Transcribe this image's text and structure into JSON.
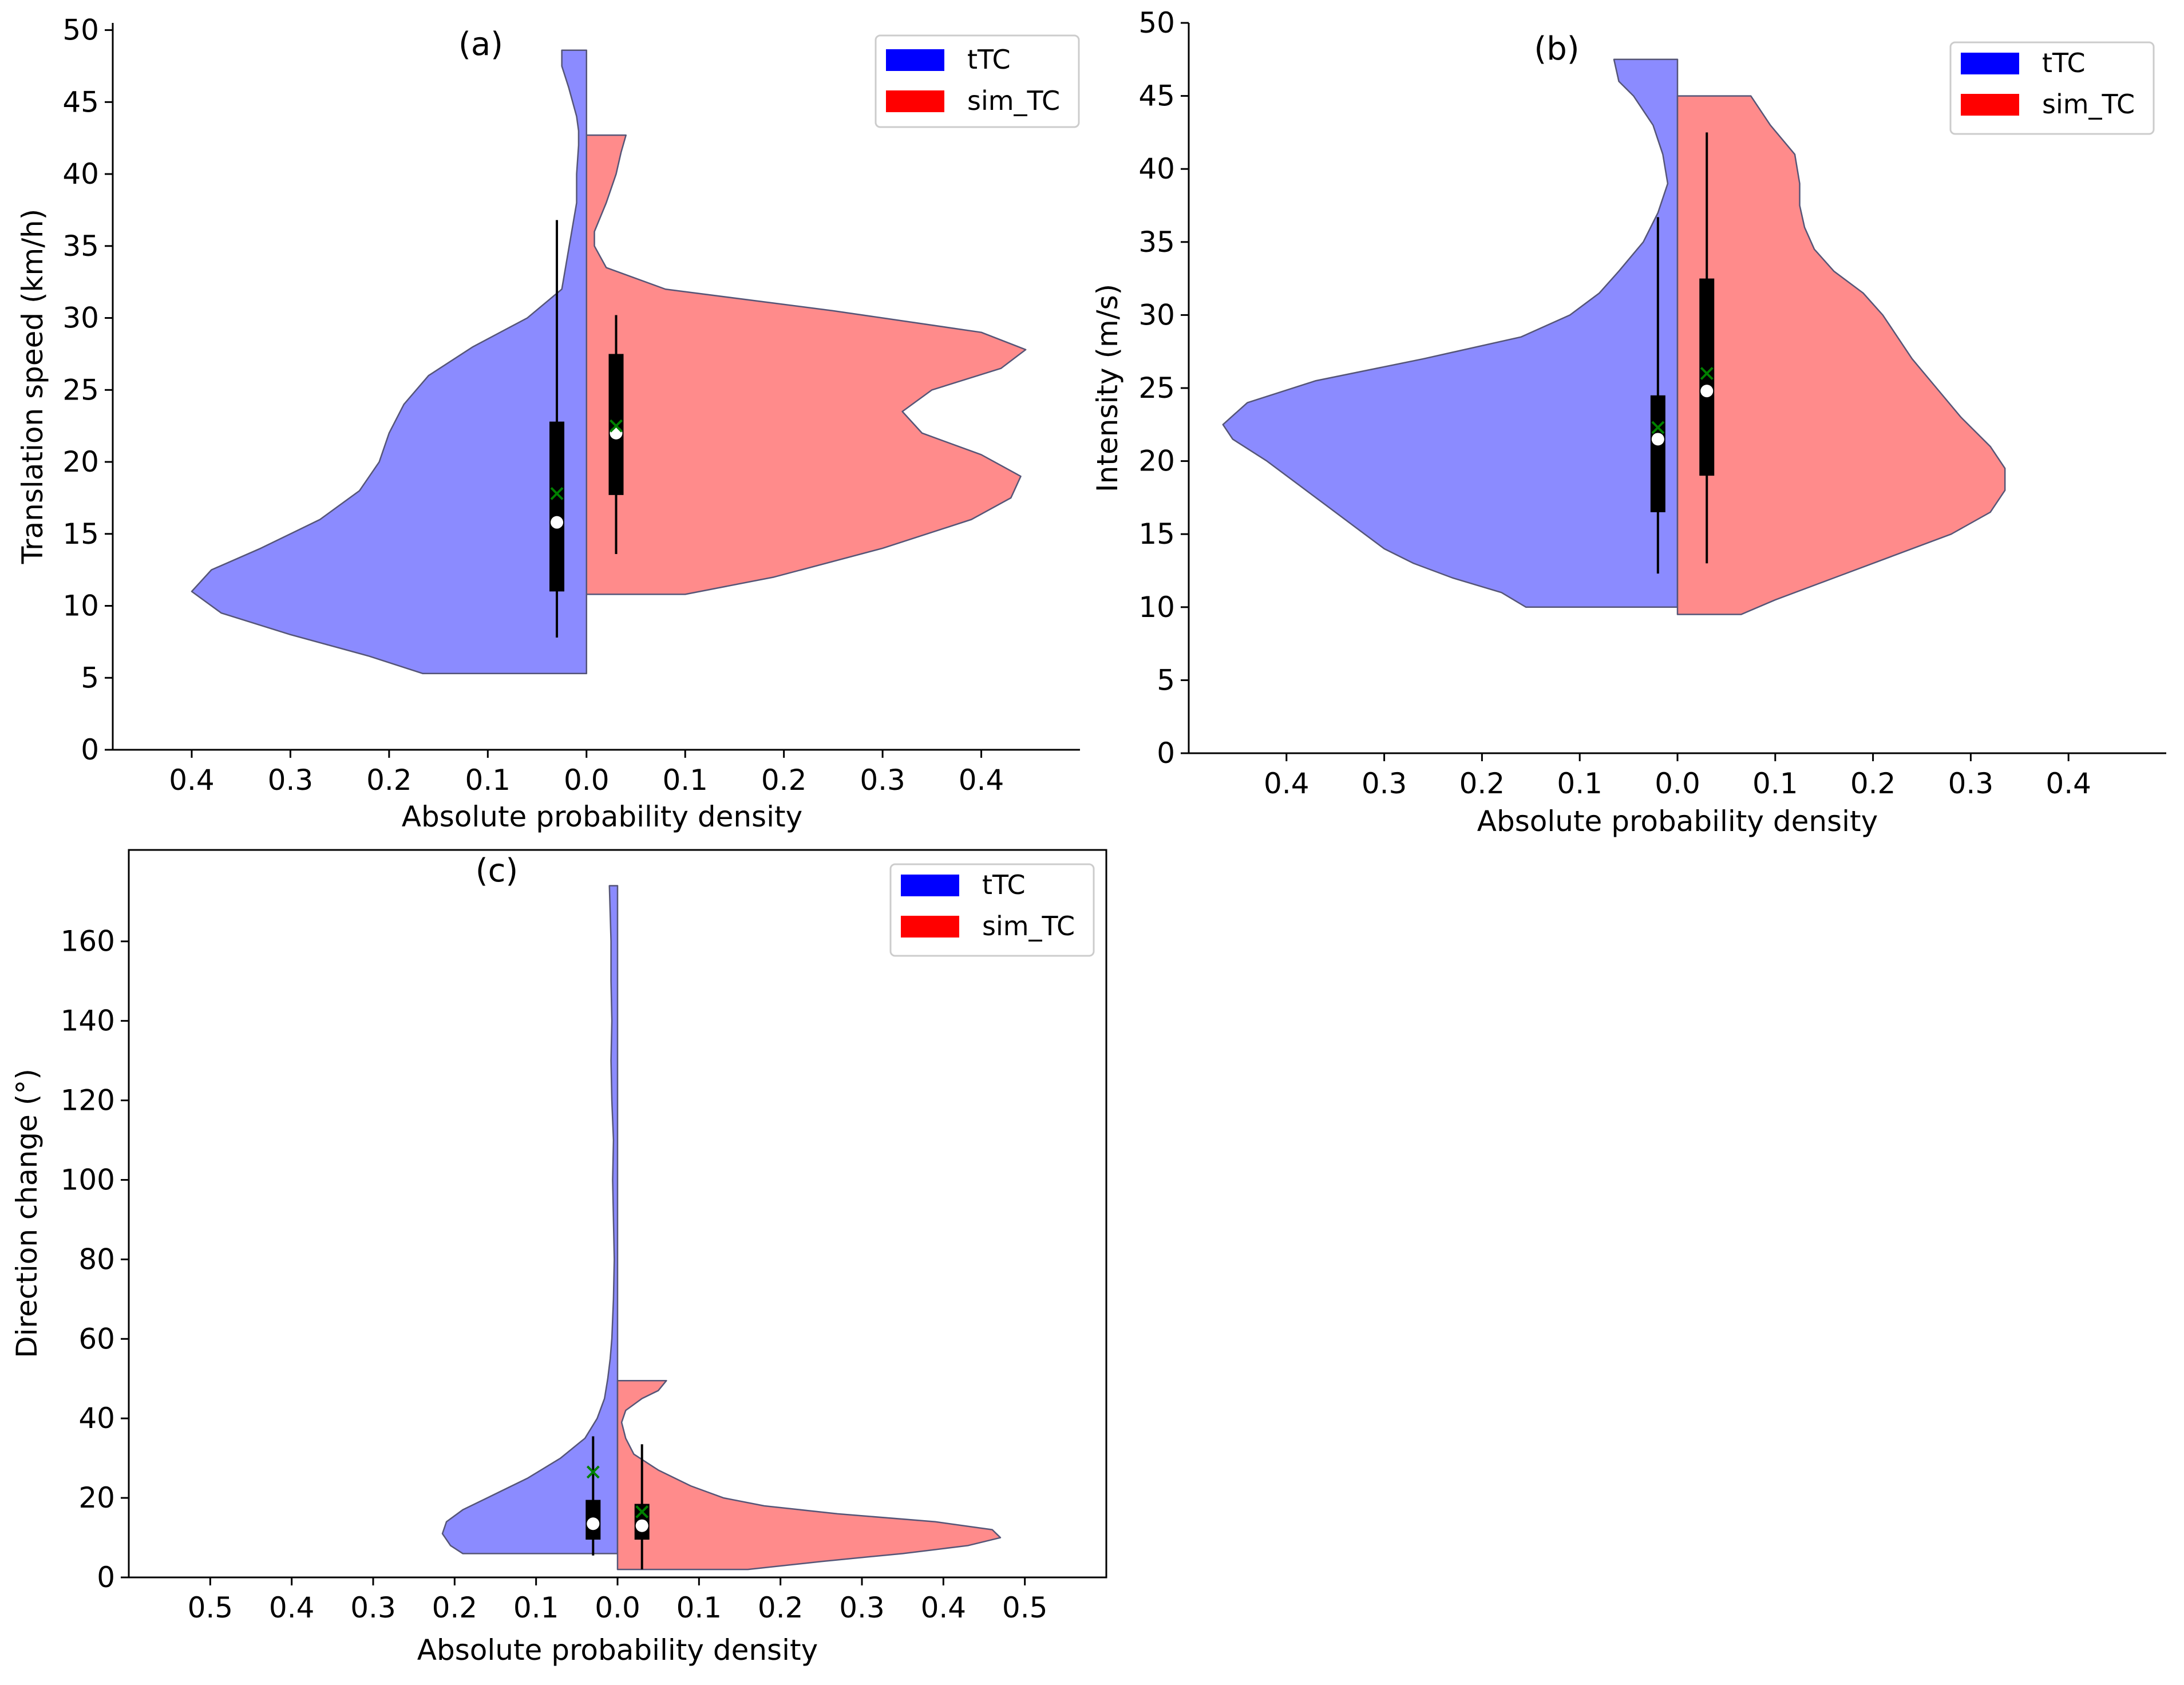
{
  "colors": {
    "ttc": "#0000ff",
    "sim_tc": "#ff0000",
    "ttc_fill": "#8b8bff",
    "sim_tc_fill": "#ff8b8b",
    "box": "#000000",
    "median": "#ffffff",
    "mean": "#008000"
  },
  "chart_data": [
    {
      "id": "a",
      "type": "violin",
      "panel_label": "(a)",
      "xlabel": "Absolute probability density",
      "ylabel": "Translation speed (km/h)",
      "xlim": [
        -0.48,
        0.5
      ],
      "ylim": [
        0,
        50.5
      ],
      "yticks": [
        0,
        5,
        10,
        15,
        20,
        25,
        30,
        35,
        40,
        45,
        50
      ],
      "xticks": [
        -0.4,
        -0.3,
        -0.2,
        -0.1,
        0.0,
        0.1,
        0.2,
        0.3,
        0.4
      ],
      "xtick_labels": [
        "0.4",
        "0.3",
        "0.2",
        "0.1",
        "0.0",
        "0.1",
        "0.2",
        "0.3",
        "0.4"
      ],
      "legend": [
        "tTC",
        "sim_TC"
      ],
      "series": [
        {
          "name": "tTC",
          "side": "left",
          "range": [
            5.3,
            48.6
          ],
          "density": [
            [
              5.3,
              0.166
            ],
            [
              6.5,
              0.22
            ],
            [
              8,
              0.3
            ],
            [
              9.5,
              0.37
            ],
            [
              11,
              0.4
            ],
            [
              12.5,
              0.38
            ],
            [
              14,
              0.33
            ],
            [
              16,
              0.27
            ],
            [
              18,
              0.23
            ],
            [
              20,
              0.21
            ],
            [
              22,
              0.2
            ],
            [
              24,
              0.185
            ],
            [
              26,
              0.16
            ],
            [
              28,
              0.115
            ],
            [
              30,
              0.06
            ],
            [
              32,
              0.025
            ],
            [
              34,
              0.02
            ],
            [
              36,
              0.015
            ],
            [
              38,
              0.01
            ],
            [
              40,
              0.01
            ],
            [
              42,
              0.008
            ],
            [
              43,
              0.008
            ],
            [
              44,
              0.01
            ],
            [
              46,
              0.018
            ],
            [
              47.5,
              0.025
            ],
            [
              48.6,
              0.025
            ]
          ],
          "box": {
            "whisker_low": 7.8,
            "q1": 11.0,
            "median": 15.8,
            "q3": 22.8,
            "whisker_high": 36.8,
            "mean": 17.8
          }
        },
        {
          "name": "sim_TC",
          "side": "right",
          "range": [
            10.8,
            42.7
          ],
          "density": [
            [
              10.8,
              0.1
            ],
            [
              12,
              0.19
            ],
            [
              14,
              0.3
            ],
            [
              16,
              0.39
            ],
            [
              17.5,
              0.43
            ],
            [
              19,
              0.44
            ],
            [
              20.5,
              0.4
            ],
            [
              22,
              0.34
            ],
            [
              23.5,
              0.32
            ],
            [
              25,
              0.35
            ],
            [
              26.5,
              0.42
            ],
            [
              27.8,
              0.445
            ],
            [
              29,
              0.4
            ],
            [
              30.5,
              0.25
            ],
            [
              32,
              0.08
            ],
            [
              33.5,
              0.02
            ],
            [
              35,
              0.008
            ],
            [
              36,
              0.008
            ],
            [
              38,
              0.02
            ],
            [
              40,
              0.03
            ],
            [
              41.5,
              0.035
            ],
            [
              42.7,
              0.04
            ]
          ],
          "box": {
            "whisker_low": 13.6,
            "q1": 17.7,
            "median": 22.0,
            "q3": 27.5,
            "whisker_high": 30.2,
            "mean": 22.5
          }
        }
      ]
    },
    {
      "id": "b",
      "type": "violin",
      "panel_label": "(b)",
      "xlabel": "Absolute probability density",
      "ylabel": "Intensity (m/s)",
      "xlim": [
        -0.5,
        0.5
      ],
      "ylim": [
        0,
        50
      ],
      "yticks": [
        0,
        5,
        10,
        15,
        20,
        25,
        30,
        35,
        40,
        45,
        50
      ],
      "xticks": [
        -0.4,
        -0.3,
        -0.2,
        -0.1,
        0.0,
        0.1,
        0.2,
        0.3,
        0.4
      ],
      "xtick_labels": [
        "0.4",
        "0.3",
        "0.2",
        "0.1",
        "0.0",
        "0.1",
        "0.2",
        "0.3",
        "0.4"
      ],
      "legend": [
        "tTC",
        "sim_TC"
      ],
      "series": [
        {
          "name": "tTC",
          "side": "left",
          "range": [
            10.0,
            47.5
          ],
          "density": [
            [
              10,
              0.155
            ],
            [
              11,
              0.18
            ],
            [
              12,
              0.23
            ],
            [
              13,
              0.27
            ],
            [
              14,
              0.3
            ],
            [
              15.5,
              0.33
            ],
            [
              17,
              0.36
            ],
            [
              18.5,
              0.39
            ],
            [
              20,
              0.42
            ],
            [
              21.5,
              0.455
            ],
            [
              22.5,
              0.465
            ],
            [
              24,
              0.44
            ],
            [
              25.5,
              0.37
            ],
            [
              27,
              0.26
            ],
            [
              28.5,
              0.16
            ],
            [
              30,
              0.11
            ],
            [
              31.5,
              0.08
            ],
            [
              33,
              0.06
            ],
            [
              35,
              0.035
            ],
            [
              37,
              0.02
            ],
            [
              39,
              0.01
            ],
            [
              41,
              0.015
            ],
            [
              43,
              0.025
            ],
            [
              45,
              0.045
            ],
            [
              46,
              0.06
            ],
            [
              47.5,
              0.065
            ]
          ],
          "box": {
            "whisker_low": 12.3,
            "q1": 16.5,
            "median": 21.5,
            "q3": 24.5,
            "whisker_high": 36.7,
            "mean": 22.3
          }
        },
        {
          "name": "sim_TC",
          "side": "right",
          "range": [
            9.5,
            45.0
          ],
          "density": [
            [
              9.5,
              0.065
            ],
            [
              10.5,
              0.1
            ],
            [
              12,
              0.16
            ],
            [
              13.5,
              0.22
            ],
            [
              15,
              0.28
            ],
            [
              16.5,
              0.32
            ],
            [
              18,
              0.335
            ],
            [
              19.5,
              0.335
            ],
            [
              21,
              0.32
            ],
            [
              23,
              0.29
            ],
            [
              25,
              0.265
            ],
            [
              27,
              0.24
            ],
            [
              28.5,
              0.225
            ],
            [
              30,
              0.21
            ],
            [
              31.5,
              0.19
            ],
            [
              33,
              0.16
            ],
            [
              34.5,
              0.14
            ],
            [
              36,
              0.13
            ],
            [
              37.5,
              0.125
            ],
            [
              39,
              0.125
            ],
            [
              41,
              0.12
            ],
            [
              43,
              0.095
            ],
            [
              45,
              0.075
            ]
          ],
          "box": {
            "whisker_low": 13.0,
            "q1": 19.0,
            "median": 24.8,
            "q3": 32.5,
            "whisker_high": 42.5,
            "mean": 26.0
          }
        }
      ]
    },
    {
      "id": "c",
      "type": "violin",
      "panel_label": "(c)",
      "xlabel": "Absolute probability density",
      "ylabel": "Direction change (°)",
      "xlim": [
        -0.6,
        0.6
      ],
      "ylim": [
        0,
        183
      ],
      "yticks": [
        0,
        20,
        40,
        60,
        80,
        100,
        120,
        140,
        160
      ],
      "xticks": [
        -0.5,
        -0.4,
        -0.3,
        -0.2,
        -0.1,
        0.0,
        0.1,
        0.2,
        0.3,
        0.4,
        0.5
      ],
      "xtick_labels": [
        "0.5",
        "0.4",
        "0.3",
        "0.2",
        "0.1",
        "0.0",
        "0.1",
        "0.2",
        "0.3",
        "0.4",
        "0.5"
      ],
      "legend": [
        "tTC",
        "sim_TC"
      ],
      "series": [
        {
          "name": "tTC",
          "side": "left",
          "range": [
            6.0,
            174.0
          ],
          "density": [
            [
              6,
              0.19
            ],
            [
              8,
              0.205
            ],
            [
              11,
              0.215
            ],
            [
              14,
              0.21
            ],
            [
              17,
              0.19
            ],
            [
              20,
              0.16
            ],
            [
              25,
              0.11
            ],
            [
              30,
              0.07
            ],
            [
              35,
              0.04
            ],
            [
              40,
              0.025
            ],
            [
              45,
              0.016
            ],
            [
              50,
              0.012
            ],
            [
              55,
              0.009
            ],
            [
              60,
              0.007
            ],
            [
              70,
              0.005
            ],
            [
              80,
              0.004
            ],
            [
              90,
              0.005
            ],
            [
              100,
              0.006
            ],
            [
              110,
              0.005
            ],
            [
              120,
              0.007
            ],
            [
              130,
              0.008
            ],
            [
              140,
              0.007
            ],
            [
              150,
              0.008
            ],
            [
              160,
              0.008
            ],
            [
              174,
              0.01
            ]
          ],
          "box": {
            "whisker_low": 5.5,
            "q1": 9.5,
            "median": 13.5,
            "q3": 19.5,
            "whisker_high": 35.5,
            "mean": 26.5
          }
        },
        {
          "name": "sim_TC",
          "side": "right",
          "range": [
            2.0,
            49.5
          ],
          "density": [
            [
              2,
              0.16
            ],
            [
              4,
              0.25
            ],
            [
              6,
              0.35
            ],
            [
              8,
              0.43
            ],
            [
              10,
              0.47
            ],
            [
              12,
              0.46
            ],
            [
              14,
              0.39
            ],
            [
              16,
              0.27
            ],
            [
              18,
              0.18
            ],
            [
              20,
              0.13
            ],
            [
              23,
              0.09
            ],
            [
              27,
              0.05
            ],
            [
              31,
              0.02
            ],
            [
              35,
              0.01
            ],
            [
              39,
              0.005
            ],
            [
              42,
              0.01
            ],
            [
              45,
              0.03
            ],
            [
              47,
              0.05
            ],
            [
              49.5,
              0.06
            ]
          ],
          "box": {
            "whisker_low": 2.0,
            "q1": 9.5,
            "median": 13.0,
            "q3": 18.5,
            "whisker_high": 33.5,
            "mean": 16.5
          }
        }
      ]
    }
  ]
}
